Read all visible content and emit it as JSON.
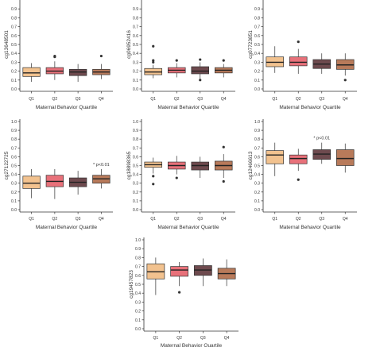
{
  "colors": {
    "Q1": "#F2C28F",
    "Q2": "#E8717A",
    "Q3": "#6E4A4E",
    "Q4": "#B87A5A",
    "axis": "#333333",
    "text": "#333333"
  },
  "chart_data": [
    {
      "type": "box",
      "ylabel": "cg13648501",
      "xlabel": "Maternal Behavior Quartile",
      "annotation": "",
      "categories": [
        "Q1",
        "Q2",
        "Q3",
        "Q4"
      ],
      "yticks": [
        "0.0",
        "0.1",
        "0.2",
        "0.3",
        "0.4",
        "0.5",
        "0.6",
        "0.7",
        "0.8",
        "0.9",
        "1.0"
      ],
      "ylim": [
        0,
        1
      ],
      "boxes": [
        {
          "q1": 0.14,
          "median": 0.18,
          "q3": 0.24,
          "whisker_low": 0.08,
          "whisker_high": 0.29,
          "outliers": []
        },
        {
          "q1": 0.17,
          "median": 0.2,
          "q3": 0.24,
          "whisker_low": 0.1,
          "whisker_high": 0.31,
          "outliers": [
            0.36,
            0.37
          ]
        },
        {
          "q1": 0.15,
          "median": 0.19,
          "q3": 0.22,
          "whisker_low": 0.08,
          "whisker_high": 0.28,
          "outliers": []
        },
        {
          "q1": 0.16,
          "median": 0.19,
          "q3": 0.22,
          "whisker_low": 0.11,
          "whisker_high": 0.28,
          "outliers": [
            0.37
          ]
        }
      ]
    },
    {
      "type": "box",
      "ylabel": "cg06952416",
      "xlabel": "Maternal Behavior Quartile",
      "annotation": "",
      "categories": [
        "Q1",
        "Q2",
        "Q3",
        "Q4"
      ],
      "yticks": [
        "0.0",
        "0.1",
        "0.2",
        "0.3",
        "0.4",
        "0.5",
        "0.6",
        "0.7",
        "0.8",
        "0.9",
        "1.0"
      ],
      "ylim": [
        0,
        1
      ],
      "boxes": [
        {
          "q1": 0.16,
          "median": 0.19,
          "q3": 0.23,
          "whisker_low": 0.12,
          "whisker_high": 0.27,
          "outliers": [
            0.3,
            0.32,
            0.48
          ]
        },
        {
          "q1": 0.18,
          "median": 0.21,
          "q3": 0.24,
          "whisker_low": 0.13,
          "whisker_high": 0.29,
          "outliers": [
            0.32
          ]
        },
        {
          "q1": 0.17,
          "median": 0.2,
          "q3": 0.25,
          "whisker_low": 0.11,
          "whisker_high": 0.3,
          "outliers": [
            0.1,
            0.33
          ]
        },
        {
          "q1": 0.18,
          "median": 0.21,
          "q3": 0.24,
          "whisker_low": 0.13,
          "whisker_high": 0.28,
          "outliers": [
            0.32
          ]
        }
      ]
    },
    {
      "type": "box",
      "ylabel": "cg07723851",
      "xlabel": "Maternal Behavior Quartile",
      "annotation": "",
      "categories": [
        "Q1",
        "Q2",
        "Q3",
        "Q4"
      ],
      "yticks": [
        "0.0",
        "0.1",
        "0.2",
        "0.3",
        "0.4",
        "0.5",
        "0.6",
        "0.7",
        "0.8",
        "0.9",
        "1.0"
      ],
      "ylim": [
        0,
        1
      ],
      "boxes": [
        {
          "q1": 0.25,
          "median": 0.3,
          "q3": 0.36,
          "whisker_low": 0.18,
          "whisker_high": 0.48,
          "outliers": []
        },
        {
          "q1": 0.26,
          "median": 0.3,
          "q3": 0.36,
          "whisker_low": 0.17,
          "whisker_high": 0.45,
          "outliers": [
            0.53
          ]
        },
        {
          "q1": 0.23,
          "median": 0.28,
          "q3": 0.33,
          "whisker_low": 0.17,
          "whisker_high": 0.4,
          "outliers": []
        },
        {
          "q1": 0.22,
          "median": 0.27,
          "q3": 0.33,
          "whisker_low": 0.15,
          "whisker_high": 0.4,
          "outliers": [
            0.1
          ]
        }
      ]
    },
    {
      "type": "box",
      "ylabel": "cg27122725",
      "xlabel": "Maternal Behavior Quartile",
      "annotation": "* p<0.01",
      "annotation_at": "Q4",
      "categories": [
        "Q1",
        "Q2",
        "Q3",
        "Q4"
      ],
      "yticks": [
        "0.0",
        "0.1",
        "0.2",
        "0.3",
        "0.4",
        "0.5",
        "0.6",
        "0.7",
        "0.8",
        "0.9",
        "1.0"
      ],
      "ylim": [
        0,
        1
      ],
      "boxes": [
        {
          "q1": 0.24,
          "median": 0.3,
          "q3": 0.38,
          "whisker_low": 0.13,
          "whisker_high": 0.46,
          "outliers": []
        },
        {
          "q1": 0.26,
          "median": 0.32,
          "q3": 0.39,
          "whisker_low": 0.12,
          "whisker_high": 0.46,
          "outliers": []
        },
        {
          "q1": 0.26,
          "median": 0.31,
          "q3": 0.36,
          "whisker_low": 0.17,
          "whisker_high": 0.44,
          "outliers": []
        },
        {
          "q1": 0.3,
          "median": 0.35,
          "q3": 0.39,
          "whisker_low": 0.24,
          "whisker_high": 0.46,
          "outliers": []
        }
      ]
    },
    {
      "type": "box",
      "ylabel": "cg18898365",
      "xlabel": "Maternal Behavior Quartile",
      "annotation": "",
      "categories": [
        "Q1",
        "Q2",
        "Q3",
        "Q4"
      ],
      "yticks": [
        "0.0",
        "0.1",
        "0.2",
        "0.3",
        "0.4",
        "0.5",
        "0.6",
        "0.7",
        "0.8",
        "0.9",
        "1.0"
      ],
      "ylim": [
        0,
        1
      ],
      "boxes": [
        {
          "q1": 0.48,
          "median": 0.51,
          "q3": 0.54,
          "whisker_low": 0.41,
          "whisker_high": 0.59,
          "outliers": [
            0.29,
            0.38
          ]
        },
        {
          "q1": 0.46,
          "median": 0.5,
          "q3": 0.54,
          "whisker_low": 0.4,
          "whisker_high": 0.61,
          "outliers": [
            0.36
          ]
        },
        {
          "q1": 0.45,
          "median": 0.5,
          "q3": 0.54,
          "whisker_low": 0.36,
          "whisker_high": 0.6,
          "outliers": []
        },
        {
          "q1": 0.45,
          "median": 0.5,
          "q3": 0.55,
          "whisker_low": 0.36,
          "whisker_high": 0.63,
          "outliers": [
            0.32,
            0.71
          ]
        }
      ]
    },
    {
      "type": "box",
      "ylabel": "cg12466613",
      "xlabel": "Maternal Behavior Quartile",
      "annotation": "* p<0.01",
      "annotation_at": "Q3",
      "categories": [
        "Q1",
        "Q2",
        "Q3",
        "Q4"
      ],
      "yticks": [
        "0.0",
        "0.1",
        "0.2",
        "0.3",
        "0.4",
        "0.5",
        "0.6",
        "0.7",
        "0.8",
        "0.9",
        "1.0"
      ],
      "ylim": [
        0,
        1
      ],
      "boxes": [
        {
          "q1": 0.52,
          "median": 0.62,
          "q3": 0.67,
          "whisker_low": 0.38,
          "whisker_high": 0.76,
          "outliers": []
        },
        {
          "q1": 0.52,
          "median": 0.58,
          "q3": 0.62,
          "whisker_low": 0.44,
          "whisker_high": 0.69,
          "outliers": [
            0.34
          ]
        },
        {
          "q1": 0.57,
          "median": 0.63,
          "q3": 0.68,
          "whisker_low": 0.52,
          "whisker_high": 0.76,
          "outliers": []
        },
        {
          "q1": 0.5,
          "median": 0.58,
          "q3": 0.68,
          "whisker_low": 0.42,
          "whisker_high": 0.75,
          "outliers": []
        }
      ]
    },
    {
      "type": "box",
      "ylabel": "cg19457823",
      "xlabel": "Maternal Behavior Quartile",
      "annotation": "",
      "categories": [
        "Q1",
        "Q2",
        "Q3",
        "Q4"
      ],
      "yticks": [
        "0.0",
        "0.1",
        "0.2",
        "0.3",
        "0.4",
        "0.5",
        "0.6",
        "0.7",
        "0.8",
        "0.9",
        "1.0"
      ],
      "ylim": [
        0,
        1
      ],
      "boxes": [
        {
          "q1": 0.56,
          "median": 0.64,
          "q3": 0.73,
          "whisker_low": 0.38,
          "whisker_high": 0.8,
          "outliers": []
        },
        {
          "q1": 0.59,
          "median": 0.66,
          "q3": 0.7,
          "whisker_low": 0.48,
          "whisker_high": 0.75,
          "outliers": [
            0.41
          ]
        },
        {
          "q1": 0.6,
          "median": 0.66,
          "q3": 0.71,
          "whisker_low": 0.48,
          "whisker_high": 0.79,
          "outliers": []
        },
        {
          "q1": 0.56,
          "median": 0.62,
          "q3": 0.68,
          "whisker_low": 0.48,
          "whisker_high": 0.78,
          "outliers": []
        }
      ]
    }
  ]
}
